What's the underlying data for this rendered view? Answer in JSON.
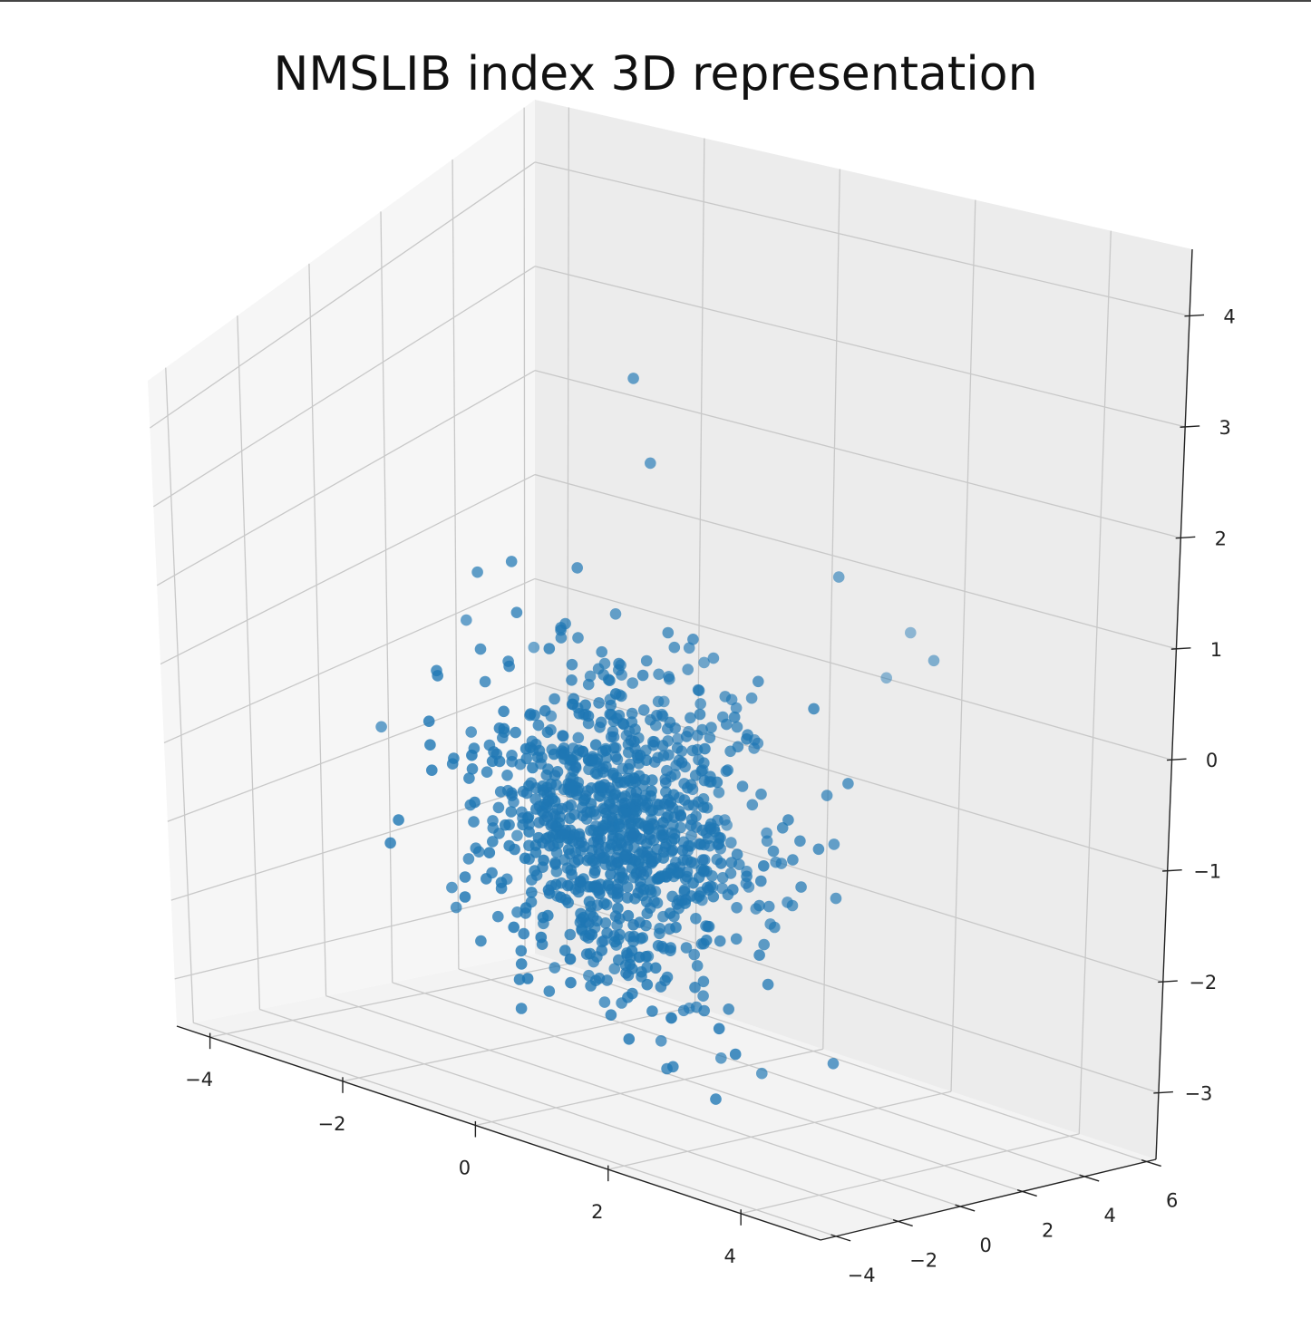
{
  "chart_data": {
    "type": "scatter",
    "projection": "3d",
    "title": "NMSLIB index 3D representation",
    "xlabel": "",
    "ylabel": "",
    "zlabel": "",
    "grid": true,
    "legend": "none",
    "xlim": [
      -4.5,
      5.2
    ],
    "ylim": [
      -4.5,
      6.3
    ],
    "zlim": [
      -3.6,
      4.6
    ],
    "x_ticks": [
      "−4",
      "−2",
      "0",
      "2",
      "4"
    ],
    "x_tick_values": [
      -4,
      -2,
      0,
      2,
      4
    ],
    "y_ticks": [
      "−4",
      "−2",
      "0",
      "2",
      "4",
      "6"
    ],
    "y_tick_values": [
      -4,
      -2,
      0,
      2,
      4,
      6
    ],
    "z_ticks": [
      "−3",
      "−2",
      "−1",
      "0",
      "1",
      "2",
      "3",
      "4"
    ],
    "z_tick_values": [
      -3,
      -2,
      -1,
      0,
      1,
      2,
      3,
      4
    ],
    "marker_color": "#1f77b4",
    "point_count": 1000,
    "note_values": "approximately 1000 points, each coordinate drawn from a standard normal distribution, plus several visible outliers",
    "outliers": [
      {
        "x": -0.6,
        "y": 1.6,
        "z": 3.9
      },
      {
        "x": -0.4,
        "y": 1.7,
        "z": 3.0
      },
      {
        "x": -3.2,
        "y": 1.8,
        "z": 0.6
      },
      {
        "x": -2.6,
        "y": 2.6,
        "z": 0.3
      },
      {
        "x": -4.4,
        "y": 1.6,
        "z": -0.8
      },
      {
        "x": 1.6,
        "y": 3.3,
        "z": 1.8
      },
      {
        "x": 1.4,
        "y": 5.9,
        "z": 0.6
      },
      {
        "x": 1.2,
        "y": 5.6,
        "z": 0.2
      },
      {
        "x": 2.4,
        "y": 4.6,
        "z": 0.8
      },
      {
        "x": 2.9,
        "y": 0.7,
        "z": -2.6
      },
      {
        "x": -0.4,
        "y": -2.4,
        "z": -1.4
      },
      {
        "x": 2.3,
        "y": -3.1,
        "z": -1.6
      }
    ]
  }
}
